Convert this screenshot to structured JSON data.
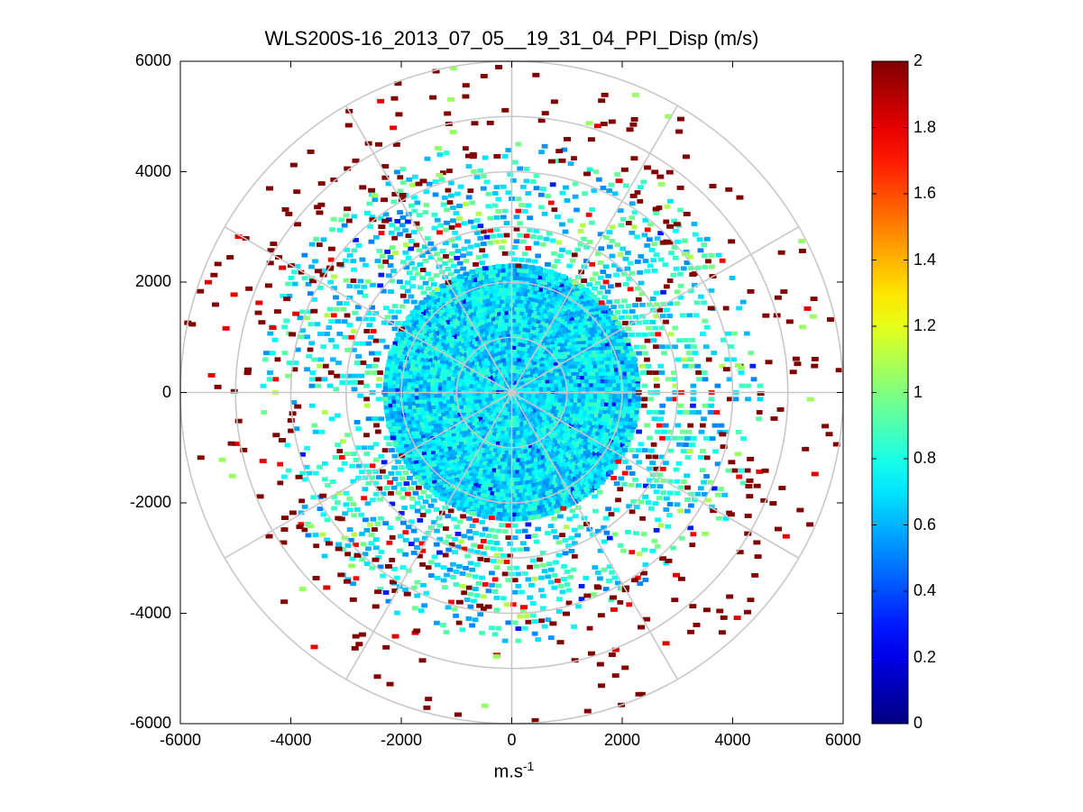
{
  "chart_data": {
    "type": "heatmap",
    "subtype": "polar-ppi-scan",
    "title": "WLS200S-16_2013_07_05__19_31_04_PPI_Disp (m/s)",
    "xlabel": "m.s",
    "xlabel_sup": "-1",
    "ylabel": "",
    "xlim": [
      -6000,
      6000
    ],
    "ylim": [
      -6000,
      6000
    ],
    "x_ticks": [
      -6000,
      -4000,
      -2000,
      0,
      2000,
      4000,
      6000
    ],
    "y_ticks": [
      6000,
      4000,
      2000,
      0,
      -2000,
      -4000,
      -6000
    ],
    "range_rings": [
      1000,
      2000,
      3000,
      4000,
      5000,
      6000
    ],
    "spoke_angles_deg": [
      0,
      30,
      60,
      90,
      120,
      150,
      180,
      210,
      240,
      270,
      300,
      330
    ],
    "dense_core_radius": 2300,
    "colorbar": {
      "colormap": "jet",
      "clim": [
        0,
        2
      ],
      "ticks": [
        "2",
        "1.8",
        "1.6",
        "1.4",
        "1.2",
        "1",
        "0.8",
        "0.6",
        "0.4",
        "0.2",
        "0"
      ]
    },
    "bin_value_summary": {
      "core_typical": 0.7,
      "outer_sparse_typical": 2.0
    },
    "colors": {
      "grid": "#c8c8c8",
      "axis": "#000000"
    }
  }
}
